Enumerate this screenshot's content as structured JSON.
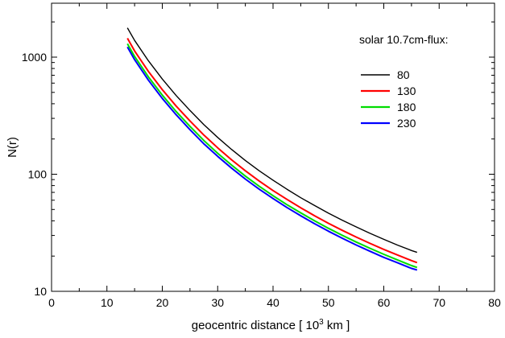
{
  "chart_data": {
    "type": "line",
    "title": "",
    "xlabel": {
      "before": "geocentric distance [ 10",
      "superscript": "3",
      "after": "km ]"
    },
    "ylabel": "N(r)",
    "xlim": [
      0,
      80
    ],
    "ylim": [
      10,
      3000
    ],
    "yscale": "log",
    "grid": false,
    "legend_title": "solar 10.7cm-flux:",
    "legend_position": "top-right",
    "x_ticks": [
      0,
      10,
      20,
      30,
      40,
      50,
      60,
      70,
      80
    ],
    "y_ticks": [
      10,
      100,
      1000
    ],
    "x_tick_labels": [
      "0",
      "10",
      "20",
      "30",
      "40",
      "50",
      "60",
      "70",
      "80"
    ],
    "y_tick_labels": [
      "10",
      "100",
      "1000"
    ],
    "x": [
      13.7,
      15,
      17.5,
      20,
      22.5,
      25,
      27.5,
      30,
      32.5,
      35,
      37.5,
      40,
      42.5,
      45,
      47.5,
      50,
      52.5,
      55,
      57.5,
      60,
      62.5,
      65,
      66
    ],
    "series": [
      {
        "name": "80",
        "color": "#000000",
        "values": [
          1780,
          1390,
          930,
          650,
          470,
          350,
          265,
          206,
          163,
          131,
          107,
          89,
          74.5,
          63,
          54,
          46.5,
          40.5,
          35.5,
          31.3,
          27.8,
          24.8,
          22.3,
          21.5
        ]
      },
      {
        "name": "130",
        "color": "#ff0000",
        "values": [
          1450,
          1130,
          755,
          528,
          382,
          285,
          216,
          168,
          133,
          107,
          87.5,
          72.5,
          61,
          51.7,
          44.2,
          38.1,
          33.2,
          29.1,
          25.7,
          22.8,
          20.4,
          18.3,
          17.6
        ]
      },
      {
        "name": "180",
        "color": "#00dd00",
        "values": [
          1300,
          1015,
          677,
          474,
          343,
          256,
          194,
          151,
          120,
          96.5,
          79,
          65.5,
          55,
          46.8,
          40,
          34.5,
          30.1,
          26.4,
          23.3,
          20.7,
          18.5,
          16.6,
          16
        ]
      },
      {
        "name": "230",
        "color": "#0000ff",
        "values": [
          1220,
          952,
          635,
          444,
          322,
          240,
          182,
          142,
          113,
          91,
          74.5,
          62,
          52,
          44.2,
          37.8,
          32.6,
          28.4,
          24.9,
          22,
          19.5,
          17.5,
          15.7,
          15.2
        ]
      }
    ]
  }
}
